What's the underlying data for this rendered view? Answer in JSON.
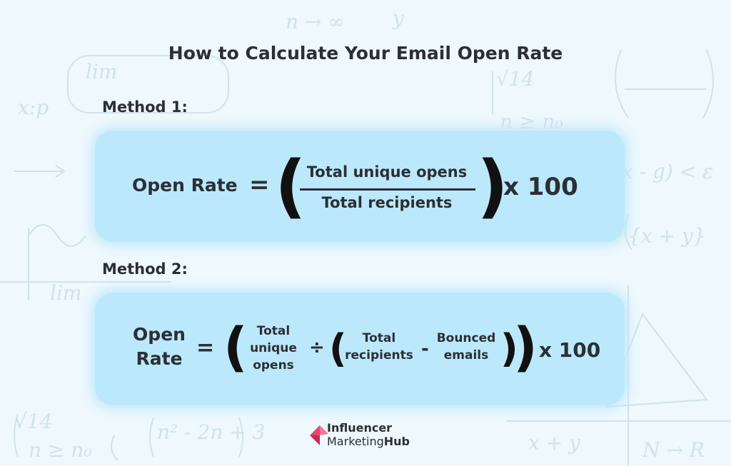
{
  "title": "How to Calculate Your Email Open Rate",
  "method1": {
    "label": "Method 1:",
    "lhs": "Open Rate",
    "equals": "=",
    "numerator": "Total unique opens",
    "denominator": "Total recipients",
    "multiplier": "x 100"
  },
  "method2": {
    "label": "Method 2:",
    "lhs_line1": "Open",
    "lhs_line2": "Rate",
    "equals": "=",
    "term1_line1": "Total",
    "term1_line2": "unique",
    "term1_line3": "opens",
    "divide": "÷",
    "term2_line1": "Total",
    "term2_line2": "recipients",
    "minus": "-",
    "term3_line1": "Bounced",
    "term3_line2": "emails",
    "multiplier": "x 100"
  },
  "brand": {
    "line1": "Influencer",
    "line2_a": "Marketing",
    "line2_b": "Hub",
    "accent_color": "#e8466c"
  },
  "colors": {
    "background": "#eef8fd",
    "card": "#bce8fb",
    "text": "#2b2f35"
  }
}
